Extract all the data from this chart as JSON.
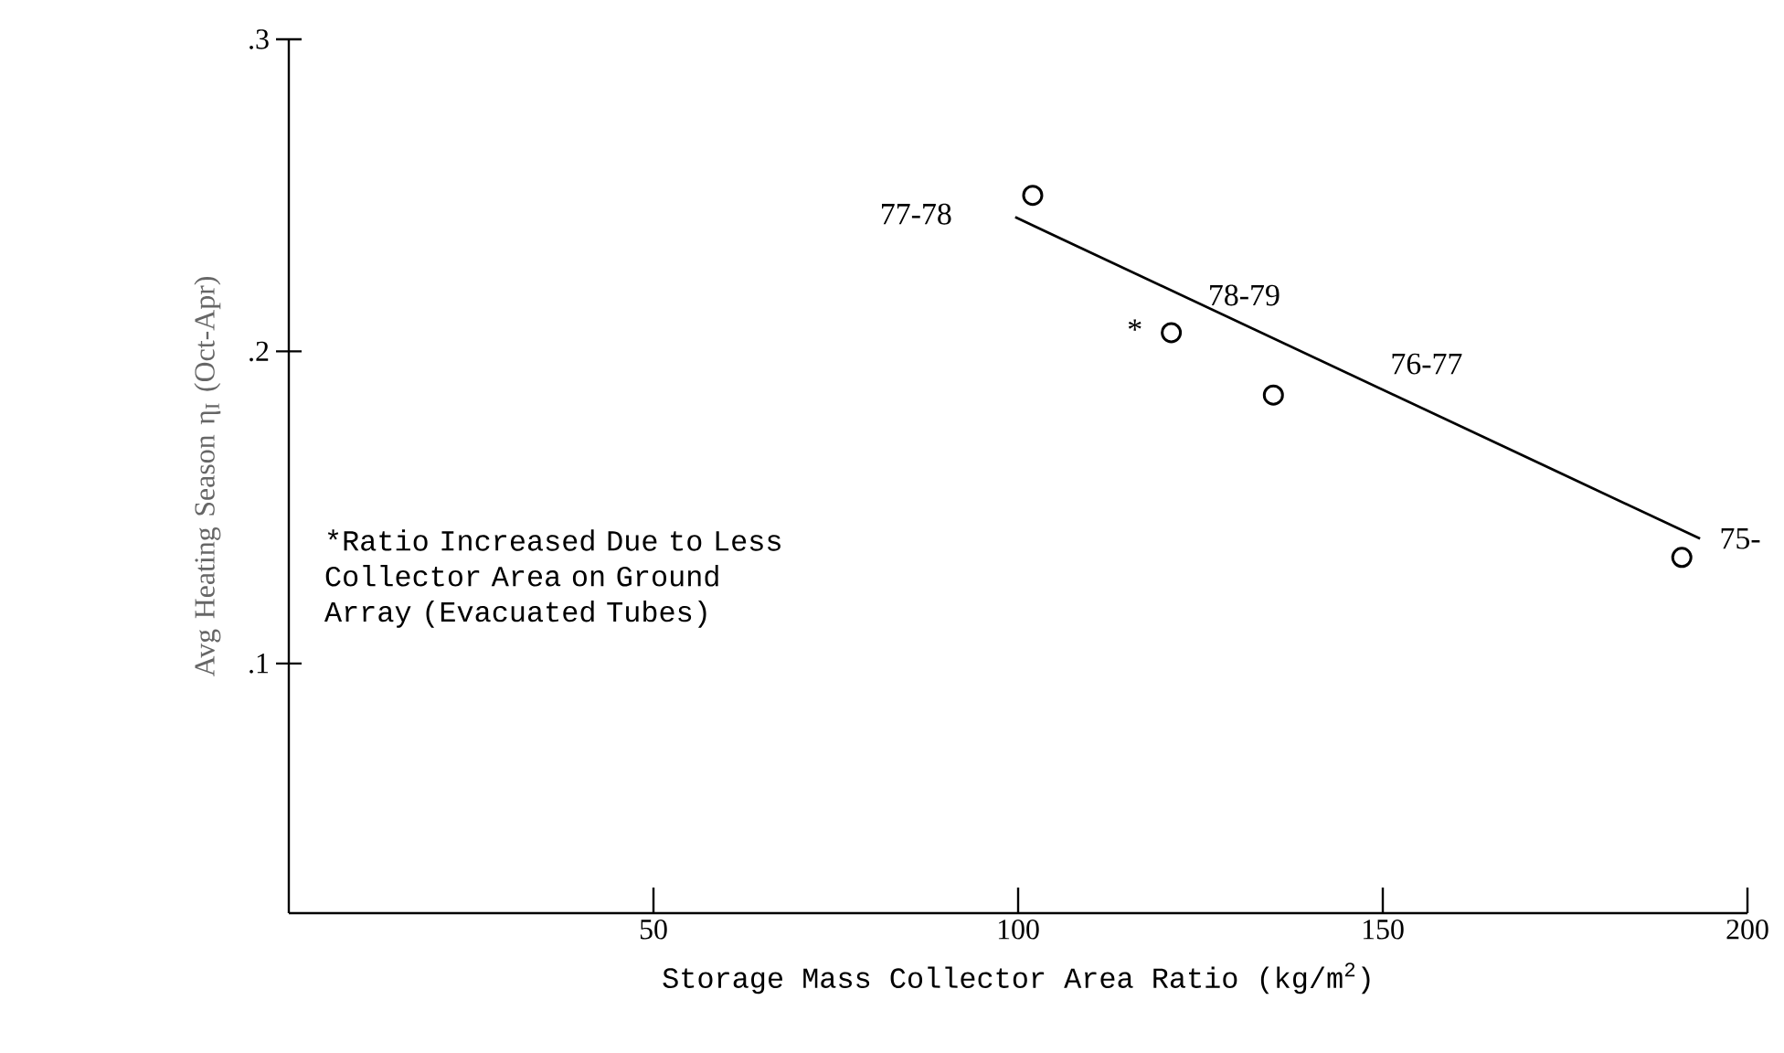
{
  "chart_data": {
    "type": "scatter",
    "xlabel": "Storage Mass Collector Area Ratio (kg/m$^{2}$)",
    "ylabel": "Avg Heating Season η$_{I}$ (Oct-Apr)",
    "x": [
      102,
      121,
      135,
      191
    ],
    "series": [
      {
        "color": "#000000",
        "marker": "circle",
        "values": [
          0.25,
          0.206,
          0.186,
          0.134
        ]
      },
      {
        "type": "line",
        "color": "#000000",
        "marker": "none",
        "line_style": "solid",
        "x": [
          99.6,
          193.5
        ],
        "values": [
          0.243,
          0.14
        ]
      }
    ],
    "xlim": [
      0,
      200
    ],
    "ylim": [
      0.02,
      0.3
    ],
    "xticks": [
      50,
      100,
      150,
      200
    ],
    "yticks": [
      {
        "value": 0.1,
        "label": ".1"
      },
      {
        "value": 0.2,
        "label": ".2"
      },
      {
        "value": 0.3,
        "label": ".3"
      }
    ],
    "grid": false,
    "annotations": [
      "77-78",
      "78-79",
      "76-77",
      "75-",
      "*",
      "*Ratio Increased Due to Less Collector Area on Ground Array (Evacuated Tubes)"
    ]
  }
}
